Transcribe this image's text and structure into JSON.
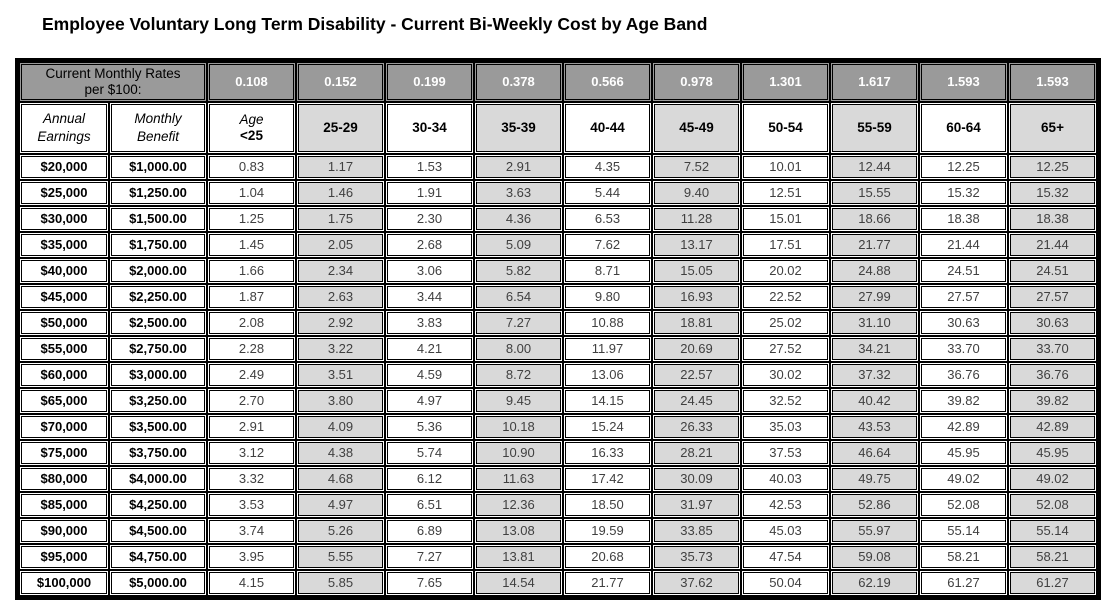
{
  "title": "Employee Voluntary Long Term Disability - Current Bi-Weekly Cost by Age Band",
  "colors": {
    "header_gray": "#9a9a9a",
    "band_gray": "#d9d9d9",
    "border": "#000000"
  },
  "table": {
    "rates_label": "Current Monthly Rates\nper $100:",
    "rates": [
      "0.108",
      "0.152",
      "0.199",
      "0.378",
      "0.566",
      "0.978",
      "1.301",
      "1.617",
      "1.593",
      "1.593"
    ],
    "earnings_header": "Annual\nEarnings",
    "benefit_header": "Monthly\nBenefit",
    "age_first_label": "Age",
    "age_first_value": "<25",
    "age_bands": [
      "25-29",
      "30-34",
      "35-39",
      "40-44",
      "45-49",
      "50-54",
      "55-59",
      "60-64",
      "65+"
    ],
    "rows": [
      {
        "earnings": "$20,000",
        "benefit": "$1,000.00",
        "costs": [
          "0.83",
          "1.17",
          "1.53",
          "2.91",
          "4.35",
          "7.52",
          "10.01",
          "12.44",
          "12.25",
          "12.25"
        ]
      },
      {
        "earnings": "$25,000",
        "benefit": "$1,250.00",
        "costs": [
          "1.04",
          "1.46",
          "1.91",
          "3.63",
          "5.44",
          "9.40",
          "12.51",
          "15.55",
          "15.32",
          "15.32"
        ]
      },
      {
        "earnings": "$30,000",
        "benefit": "$1,500.00",
        "costs": [
          "1.25",
          "1.75",
          "2.30",
          "4.36",
          "6.53",
          "11.28",
          "15.01",
          "18.66",
          "18.38",
          "18.38"
        ]
      },
      {
        "earnings": "$35,000",
        "benefit": "$1,750.00",
        "costs": [
          "1.45",
          "2.05",
          "2.68",
          "5.09",
          "7.62",
          "13.17",
          "17.51",
          "21.77",
          "21.44",
          "21.44"
        ]
      },
      {
        "earnings": "$40,000",
        "benefit": "$2,000.00",
        "costs": [
          "1.66",
          "2.34",
          "3.06",
          "5.82",
          "8.71",
          "15.05",
          "20.02",
          "24.88",
          "24.51",
          "24.51"
        ]
      },
      {
        "earnings": "$45,000",
        "benefit": "$2,250.00",
        "costs": [
          "1.87",
          "2.63",
          "3.44",
          "6.54",
          "9.80",
          "16.93",
          "22.52",
          "27.99",
          "27.57",
          "27.57"
        ]
      },
      {
        "earnings": "$50,000",
        "benefit": "$2,500.00",
        "costs": [
          "2.08",
          "2.92",
          "3.83",
          "7.27",
          "10.88",
          "18.81",
          "25.02",
          "31.10",
          "30.63",
          "30.63"
        ]
      },
      {
        "earnings": "$55,000",
        "benefit": "$2,750.00",
        "costs": [
          "2.28",
          "3.22",
          "4.21",
          "8.00",
          "11.97",
          "20.69",
          "27.52",
          "34.21",
          "33.70",
          "33.70"
        ]
      },
      {
        "earnings": "$60,000",
        "benefit": "$3,000.00",
        "costs": [
          "2.49",
          "3.51",
          "4.59",
          "8.72",
          "13.06",
          "22.57",
          "30.02",
          "37.32",
          "36.76",
          "36.76"
        ]
      },
      {
        "earnings": "$65,000",
        "benefit": "$3,250.00",
        "costs": [
          "2.70",
          "3.80",
          "4.97",
          "9.45",
          "14.15",
          "24.45",
          "32.52",
          "40.42",
          "39.82",
          "39.82"
        ]
      },
      {
        "earnings": "$70,000",
        "benefit": "$3,500.00",
        "costs": [
          "2.91",
          "4.09",
          "5.36",
          "10.18",
          "15.24",
          "26.33",
          "35.03",
          "43.53",
          "42.89",
          "42.89"
        ]
      },
      {
        "earnings": "$75,000",
        "benefit": "$3,750.00",
        "costs": [
          "3.12",
          "4.38",
          "5.74",
          "10.90",
          "16.33",
          "28.21",
          "37.53",
          "46.64",
          "45.95",
          "45.95"
        ]
      },
      {
        "earnings": "$80,000",
        "benefit": "$4,000.00",
        "costs": [
          "3.32",
          "4.68",
          "6.12",
          "11.63",
          "17.42",
          "30.09",
          "40.03",
          "49.75",
          "49.02",
          "49.02"
        ]
      },
      {
        "earnings": "$85,000",
        "benefit": "$4,250.00",
        "costs": [
          "3.53",
          "4.97",
          "6.51",
          "12.36",
          "18.50",
          "31.97",
          "42.53",
          "52.86",
          "52.08",
          "52.08"
        ]
      },
      {
        "earnings": "$90,000",
        "benefit": "$4,500.00",
        "costs": [
          "3.74",
          "5.26",
          "6.89",
          "13.08",
          "19.59",
          "33.85",
          "45.03",
          "55.97",
          "55.14",
          "55.14"
        ]
      },
      {
        "earnings": "$95,000",
        "benefit": "$4,750.00",
        "costs": [
          "3.95",
          "5.55",
          "7.27",
          "13.81",
          "20.68",
          "35.73",
          "47.54",
          "59.08",
          "58.21",
          "58.21"
        ]
      },
      {
        "earnings": "$100,000",
        "benefit": "$5,000.00",
        "costs": [
          "4.15",
          "5.85",
          "7.65",
          "14.54",
          "21.77",
          "37.62",
          "50.04",
          "62.19",
          "61.27",
          "61.27"
        ]
      }
    ]
  }
}
